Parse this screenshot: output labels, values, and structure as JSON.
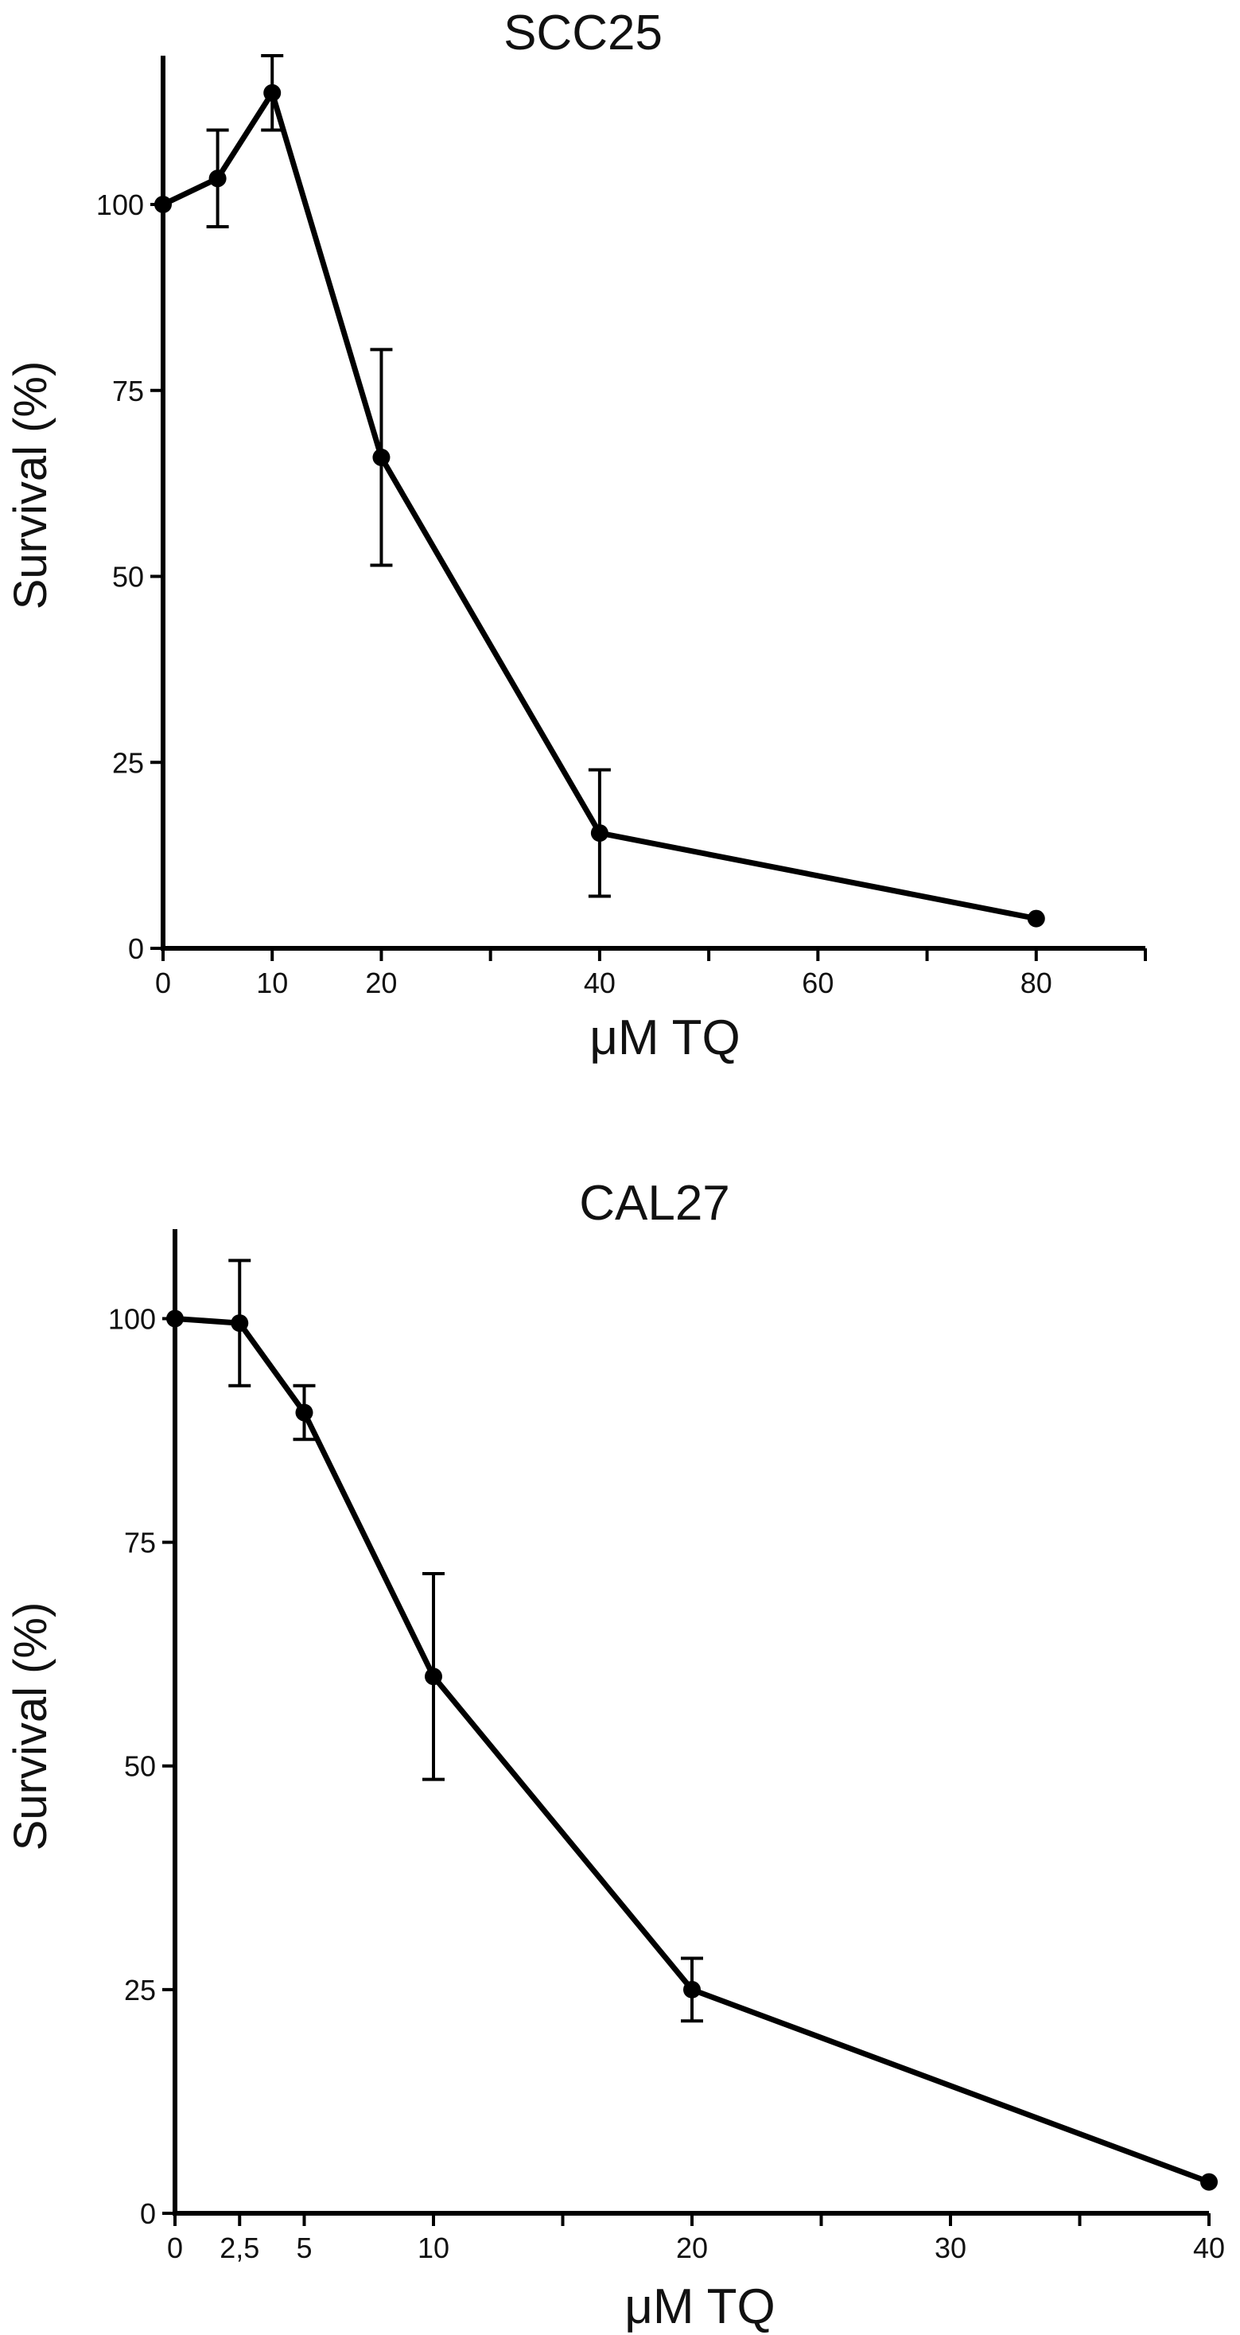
{
  "chart_data": [
    {
      "type": "line",
      "title": "SCC25",
      "xlabel": "μM TQ",
      "ylabel": "Survival (%)",
      "xlim": [
        0,
        90
      ],
      "ylim": [
        0,
        120
      ],
      "xticks": [
        0,
        10,
        20,
        30,
        40,
        50,
        60,
        70,
        80,
        90
      ],
      "xtick_labels": [
        "0",
        "10",
        "20",
        "",
        "40",
        "",
        "60",
        "",
        "80",
        ""
      ],
      "yticks": [
        0,
        25,
        50,
        75,
        100
      ],
      "ytick_labels": [
        "0",
        "25",
        "50",
        "75",
        "100"
      ],
      "grid": false,
      "series": [
        {
          "x": [
            0,
            5,
            10,
            20,
            40,
            80
          ],
          "y": [
            100,
            103.5,
            115,
            66,
            15.5,
            4
          ],
          "err": [
            0,
            6.5,
            5,
            14.5,
            8.5,
            0
          ]
        }
      ]
    },
    {
      "type": "line",
      "title": "CAL27",
      "xlabel": "μM TQ",
      "ylabel": "Survival (%)",
      "xlim": [
        0,
        40
      ],
      "ylim": [
        0,
        110
      ],
      "xticks": [
        0,
        2.5,
        5,
        10,
        15,
        20,
        25,
        30,
        35,
        40
      ],
      "xtick_labels": [
        "0",
        "2,5",
        "5",
        "10",
        "",
        "20",
        "",
        "30",
        "",
        "40"
      ],
      "yticks": [
        0,
        25,
        50,
        75,
        100
      ],
      "ytick_labels": [
        "0",
        "25",
        "50",
        "75",
        "100"
      ],
      "grid": false,
      "series": [
        {
          "x": [
            0,
            2.5,
            5,
            10,
            20,
            40
          ],
          "y": [
            100,
            99.5,
            89.5,
            60,
            25,
            3.5
          ],
          "err": [
            0,
            7,
            3,
            11.5,
            3.5,
            0
          ]
        }
      ]
    }
  ]
}
